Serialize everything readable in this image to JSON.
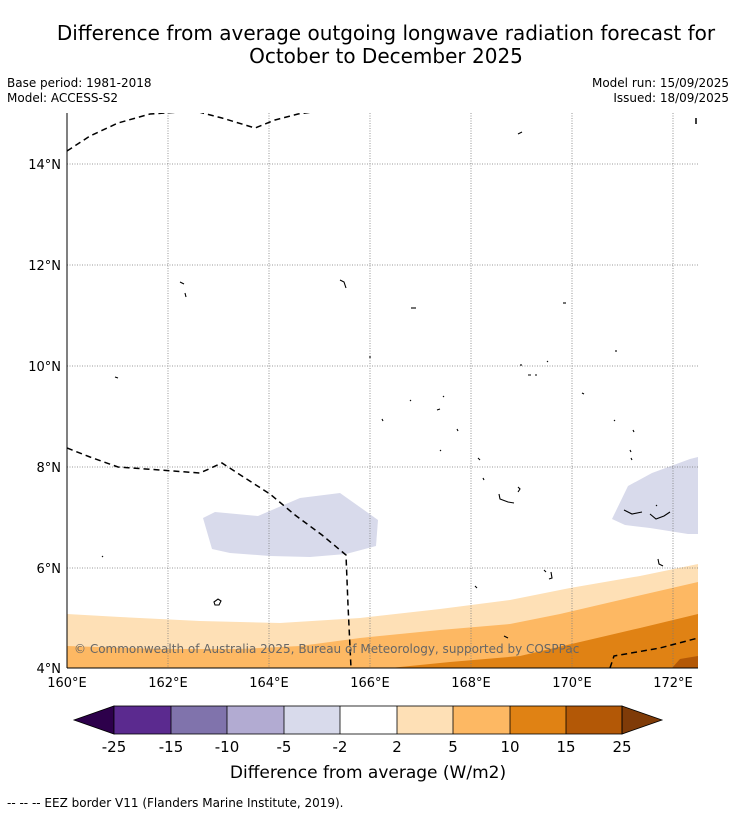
{
  "title_line1": "Difference from average outgoing longwave radiation forecast for",
  "title_line2": "October to December 2025",
  "base_period": "Base period: 1981-2018",
  "model": "Model: ACCESS-S2",
  "model_run": "Model run: 15/09/2025",
  "issued": "Issued: 18/09/2025",
  "lat_labels": [
    "14°N",
    "12°N",
    "10°N",
    "8°N",
    "6°N",
    "4°N"
  ],
  "lon_labels": [
    "160°E",
    "162°E",
    "164°E",
    "166°E",
    "168°E",
    "170°E",
    "172°E"
  ],
  "copyright": "© Commonwealth of Australia 2025, Bureau of Meteorology, supported by COSPPac",
  "colorbar": {
    "label": "Difference from average (W/m2)",
    "ticks": [
      "-25",
      "-15",
      "-10",
      "-5",
      "-2",
      "2",
      "5",
      "10",
      "15",
      "25"
    ],
    "colors": [
      "#2d004b",
      "#5b2a8f",
      "#8073ac",
      "#b2abd2",
      "#d8daeb",
      "#ffffff",
      "#fee0b6",
      "#fdb863",
      "#e08214",
      "#b35806",
      "#7f3b08"
    ]
  },
  "footnote": "--  --  -- EEZ border V11 (Flanders Marine Institute, 2019)."
}
